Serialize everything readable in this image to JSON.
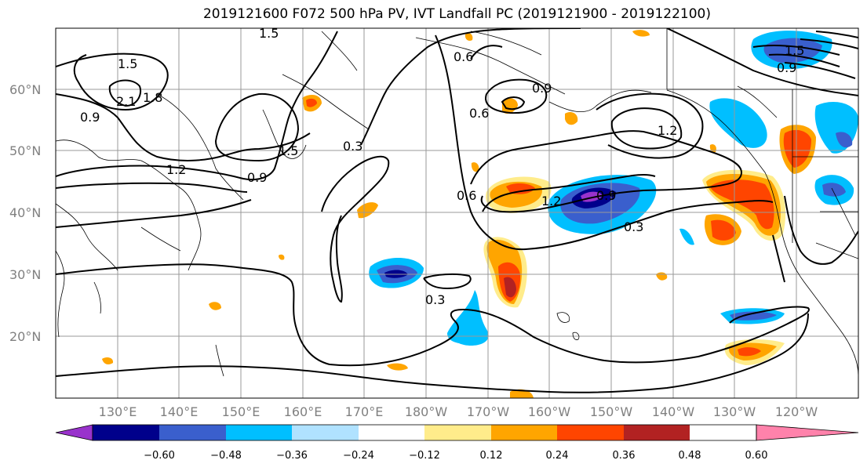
{
  "title": "2019121600 F072 500 hPa PV, IVT Landfall PC (2019121900 - 2019122100)",
  "lat_labels": [
    "60°N",
    "50°N",
    "40°N",
    "30°N",
    "20°N"
  ],
  "lon_labels": [
    "130°E",
    "140°E",
    "150°E",
    "160°E",
    "170°E",
    "180°W",
    "170°W",
    "160°W",
    "150°W",
    "140°W",
    "130°W",
    "120°W"
  ],
  "contour_labels": [
    "1.5",
    "1.5",
    "2.1",
    "1.8",
    "0.9",
    "1.2",
    "1.5",
    "0.3",
    "0.9",
    "0.6",
    "0.6",
    "0.9",
    "1.2",
    "1.2",
    "0.9",
    "0.3",
    "0.3",
    "0.6",
    "1.5",
    "0.9"
  ],
  "colorbar": {
    "ticks": [
      "−0.60",
      "−0.48",
      "−0.36",
      "−0.24",
      "−0.12",
      "0.12",
      "0.24",
      "0.36",
      "0.48",
      "0.60"
    ],
    "colors": [
      "#9932cc",
      "#00008b",
      "#3a5fcd",
      "#00bfff",
      "#b0e2ff",
      "#ffffff",
      "#ffec8b",
      "#ffa500",
      "#ff4500",
      "#b22222",
      "#ff82ab"
    ]
  }
}
